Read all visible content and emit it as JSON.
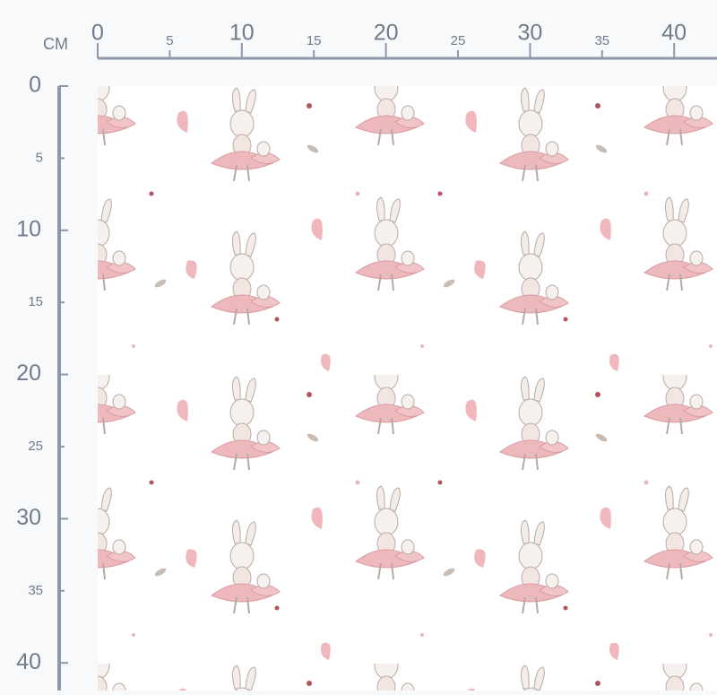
{
  "ruler": {
    "unit": "CM",
    "x_labels": [
      0,
      5,
      10,
      15,
      20,
      25,
      30,
      35,
      40
    ],
    "y_labels": [
      0,
      5,
      10,
      15,
      20,
      25,
      30,
      35,
      40
    ]
  }
}
